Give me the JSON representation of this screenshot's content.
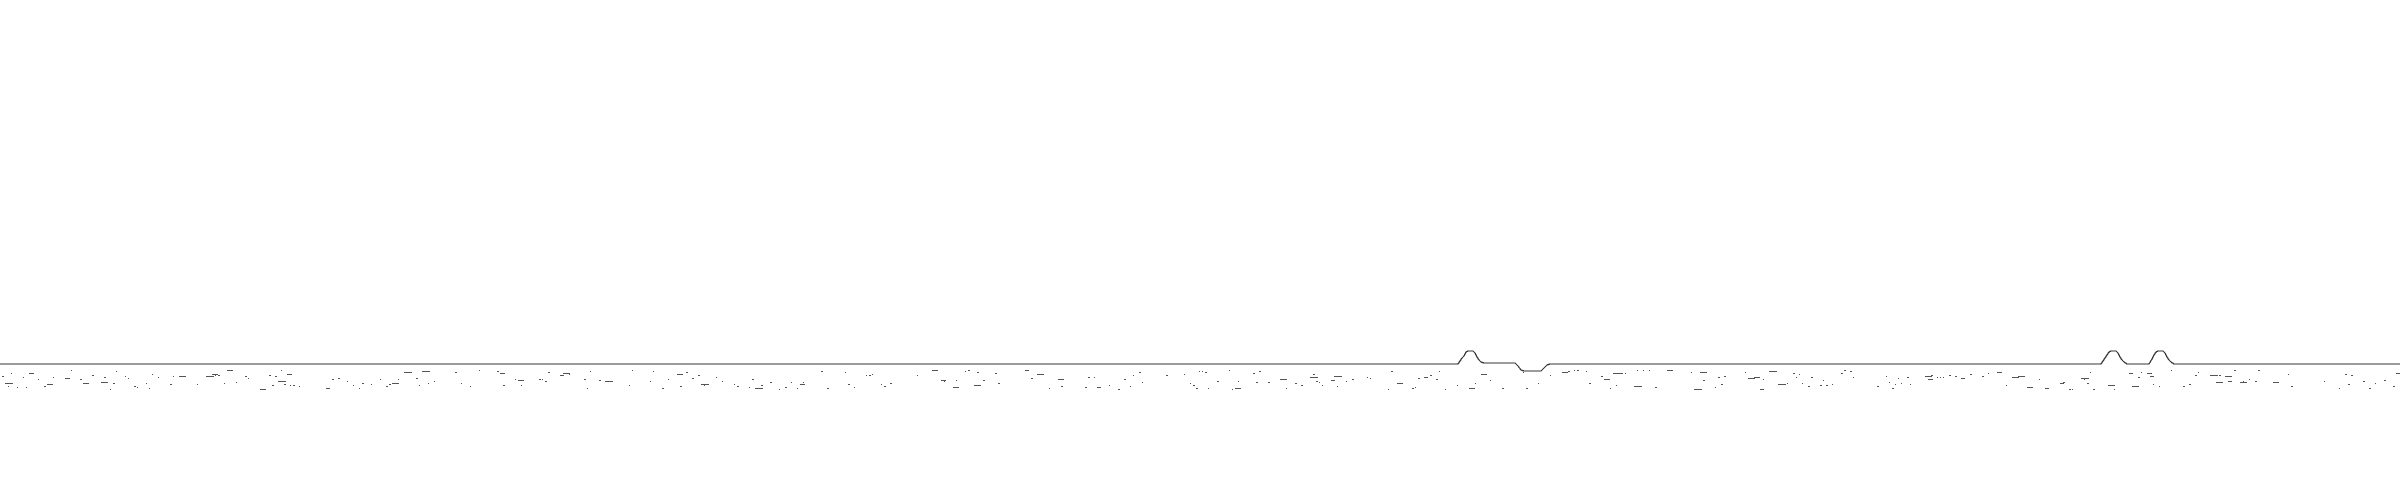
{
  "title": "",
  "trace_color": "#3a3a3a",
  "speck_color": "#555555",
  "background": "#ffffff"
}
